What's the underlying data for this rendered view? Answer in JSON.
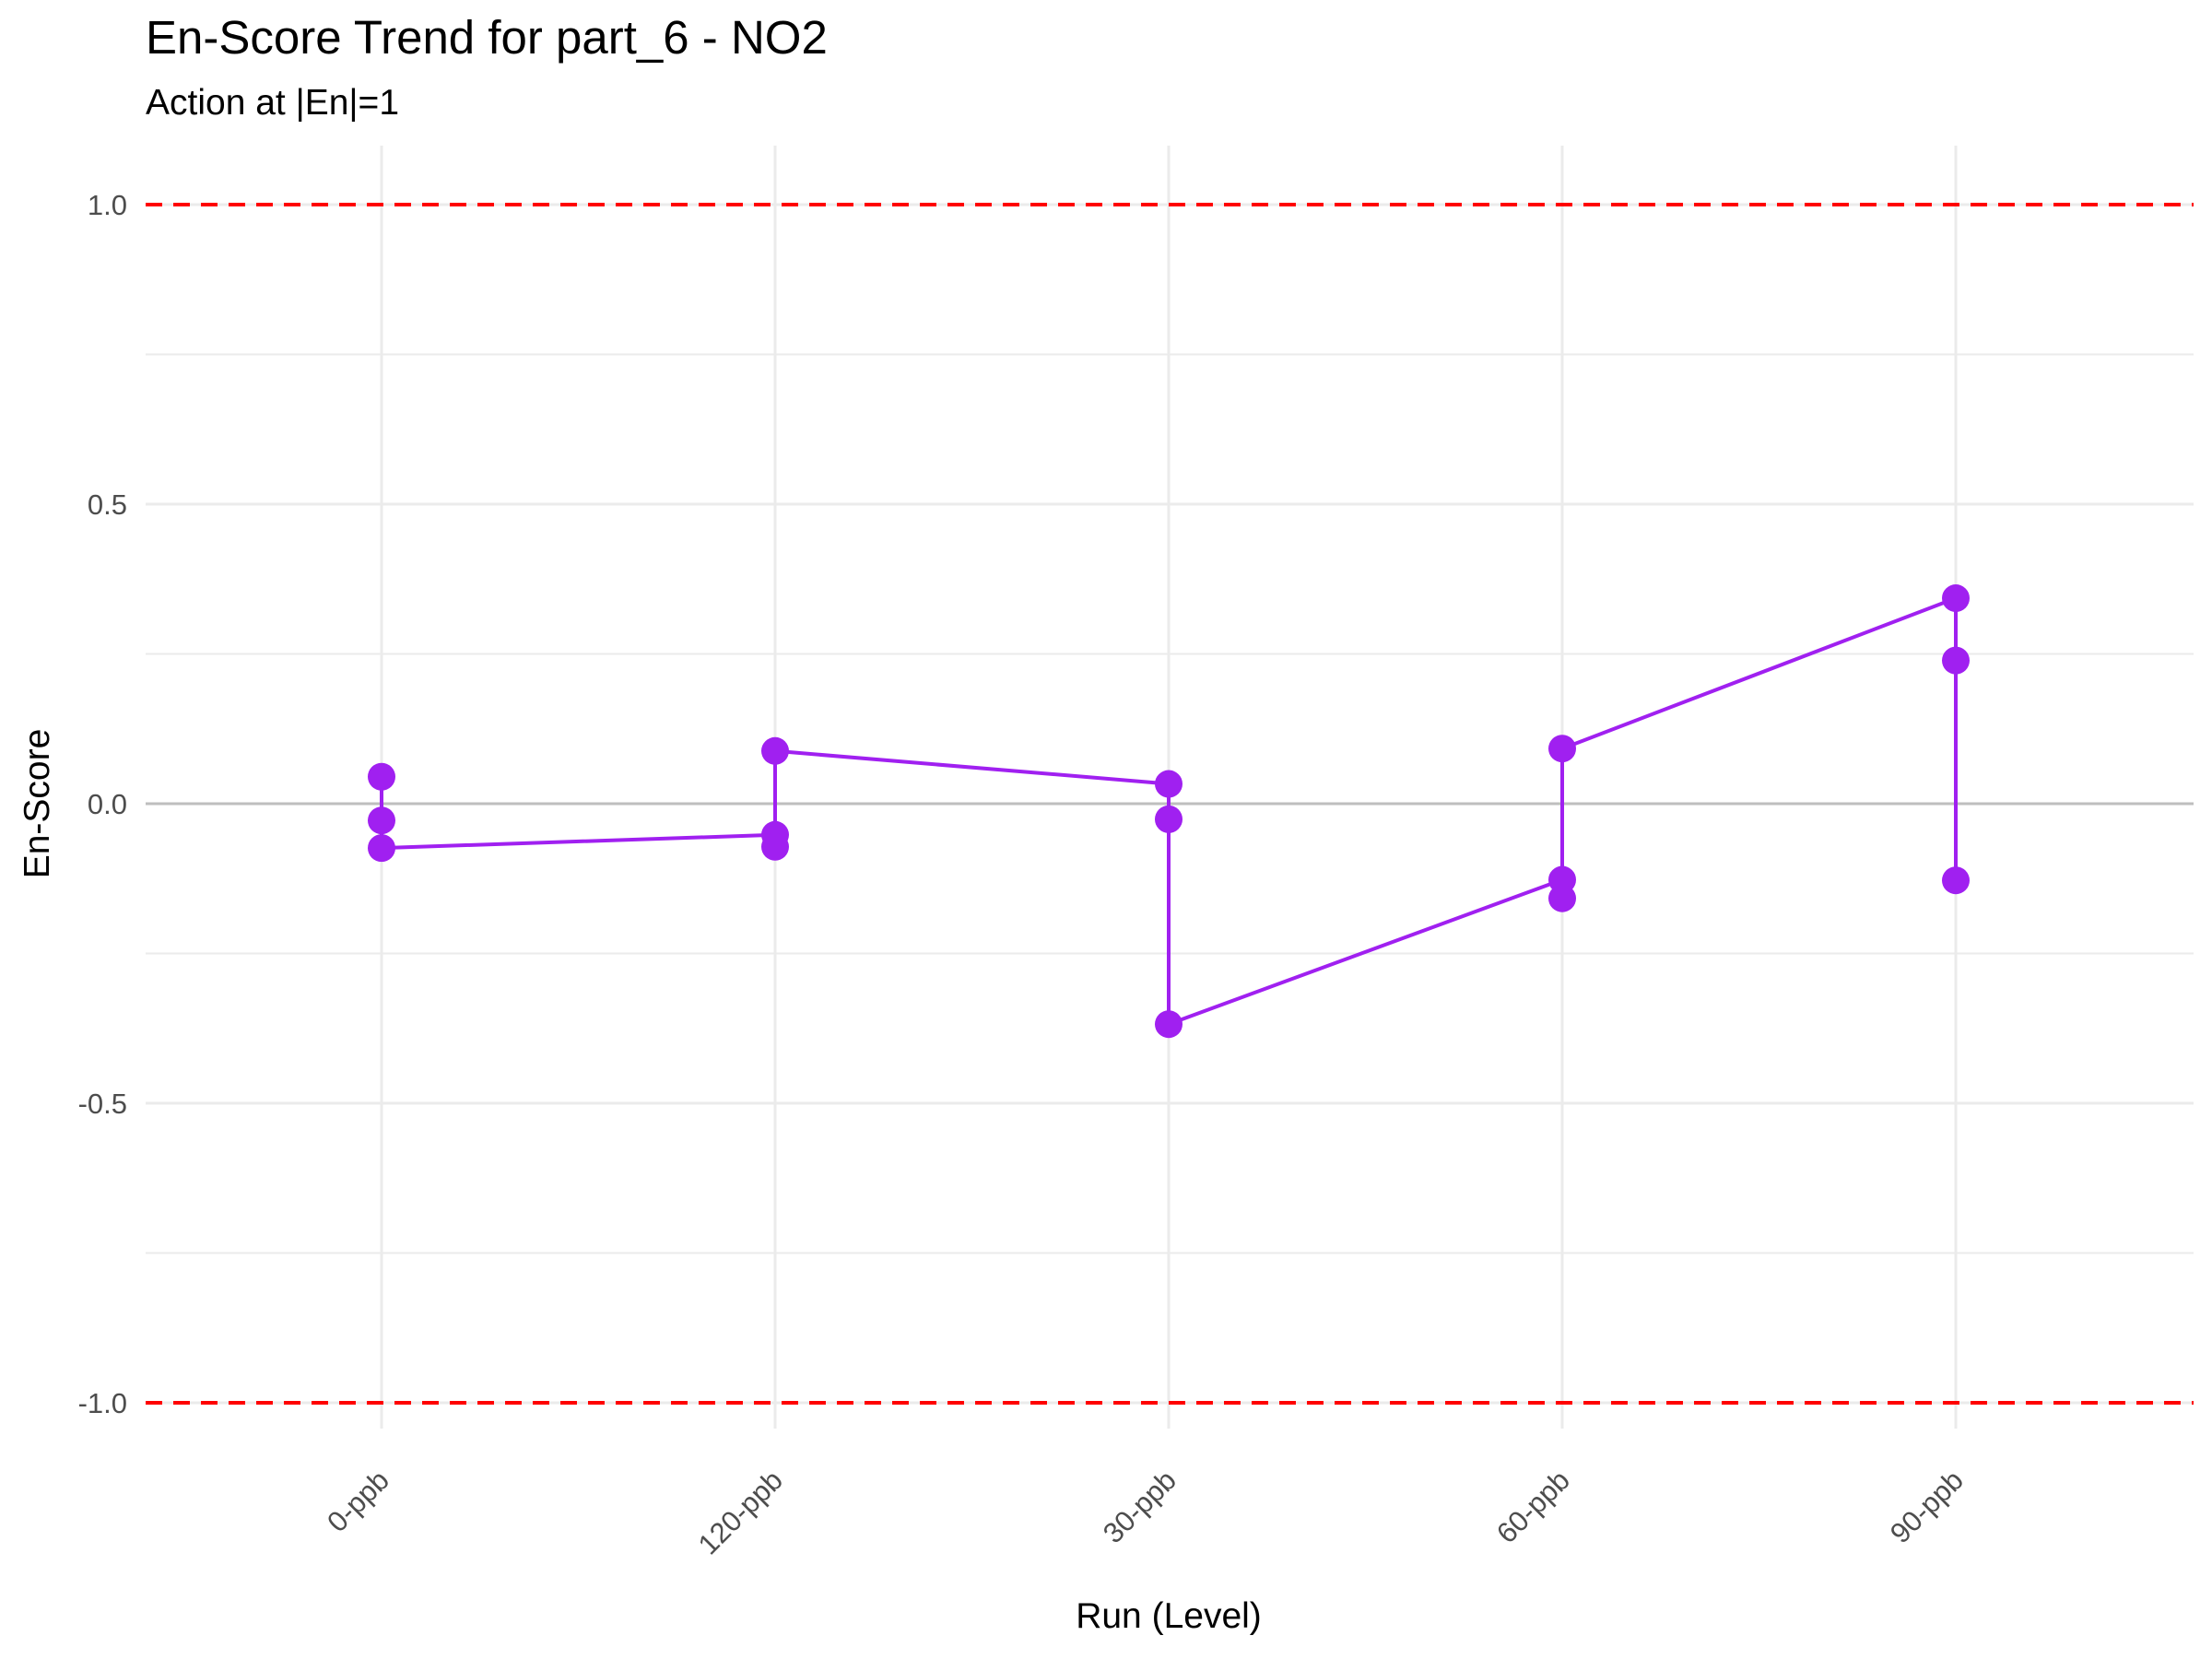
{
  "chart_data": {
    "type": "line",
    "title": "En-Score Trend for part_6 - NO2",
    "subtitle": "Action at |En|=1",
    "xlabel": "Run (Level)",
    "ylabel": "En-Score",
    "categories": [
      "0-ppb",
      "120-ppb",
      "30-ppb",
      "60-ppb",
      "90-ppb"
    ],
    "y_ticks": [
      "-1.0",
      "-0.5",
      "0.0",
      "0.5",
      "1.0"
    ],
    "ylim": [
      -1.1,
      1.1
    ],
    "grid": true,
    "legend": "none",
    "series": [
      {
        "values": [
          [
            0.045,
            -0.028,
            -0.074
          ],
          [
            0.088,
            -0.052,
            -0.072
          ],
          [
            0.033,
            -0.026,
            -0.368
          ],
          [
            0.092,
            -0.127,
            -0.158
          ],
          [
            0.343,
            0.239,
            -0.128
          ]
        ]
      }
    ],
    "reference_lines": [
      {
        "y": 1.0,
        "style": "dashed",
        "color": "#ff0000"
      },
      {
        "y": -1.0,
        "style": "dashed",
        "color": "#ff0000"
      },
      {
        "y": 0.0,
        "style": "solid",
        "color": "#bebebe"
      }
    ],
    "colors": {
      "series": "#a020f0",
      "action_line": "#ff0000",
      "zero_line": "#bebebe",
      "grid": "#ebebeb"
    }
  }
}
